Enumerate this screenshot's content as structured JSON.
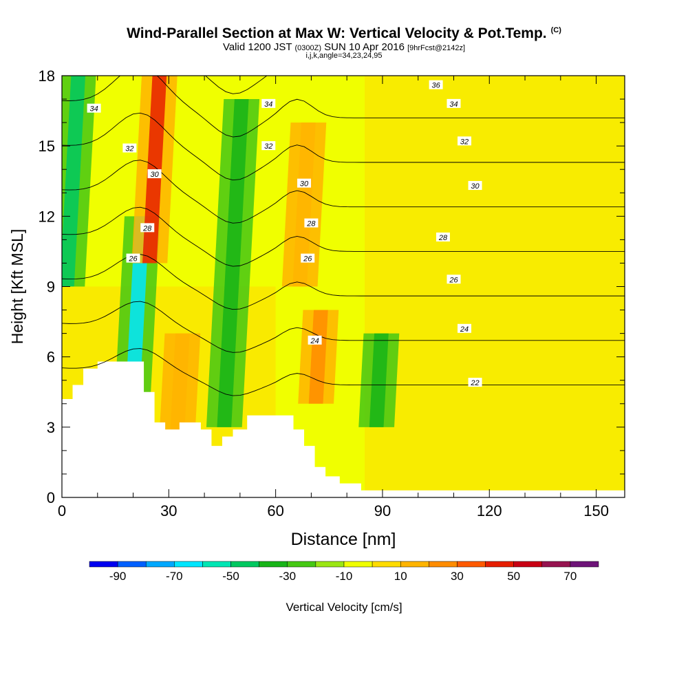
{
  "titles": {
    "main": "Wind-Parallel Section at Max W: Vertical Velocity & Pot.Temp.",
    "copyright": "(C)",
    "valid_prefix": "Valid 1200 JST",
    "valid_z": "(0300Z)",
    "valid_date": "SUN 10 Apr 2016",
    "forecast": "[9hrFcst@2142z]",
    "indices": "i,j,k,angle=34,23,24,95"
  },
  "chart_data": {
    "type": "heatmap",
    "title": "Wind-Parallel Section at Max W: Vertical Velocity & Pot.Temp.",
    "xlabel": "Distance [nm]",
    "ylabel": "Height [Kft MSL]",
    "xlim": [
      0,
      158
    ],
    "ylim": [
      0,
      18
    ],
    "x_ticks": [
      "0",
      "30",
      "60",
      "90",
      "120",
      "150"
    ],
    "y_ticks": [
      "0",
      "3",
      "6",
      "9",
      "12",
      "15",
      "18"
    ],
    "colorbar": {
      "label": "Vertical Velocity [cm/s]",
      "tick_labels": [
        "-90",
        "-70",
        "-50",
        "-30",
        "-10",
        "10",
        "30",
        "50",
        "70"
      ],
      "levels": [
        -90,
        -80,
        -70,
        -60,
        -50,
        -40,
        -30,
        -20,
        -10,
        0,
        10,
        20,
        30,
        40,
        50,
        60,
        70,
        80
      ],
      "colors": [
        "#0000f0",
        "#0060ff",
        "#00a8ff",
        "#00e6ff",
        "#00e6b4",
        "#00c860",
        "#18b418",
        "#46c814",
        "#9be614",
        "#f0ff00",
        "#ffdc00",
        "#ffb400",
        "#ff8c00",
        "#ff5a00",
        "#e61e00",
        "#c80014",
        "#961450",
        "#6e1478"
      ]
    },
    "vertical_velocity_features": [
      {
        "x": 3,
        "y_range": [
          9,
          18
        ],
        "value": -40,
        "label": "downdraft"
      },
      {
        "x": 21,
        "y_range": [
          3,
          12
        ],
        "value": -55,
        "label": "downdraft"
      },
      {
        "x": 26,
        "y_range": [
          10,
          18
        ],
        "value": 55,
        "label": "updraft"
      },
      {
        "x": 33,
        "y_range": [
          2,
          7
        ],
        "value": 25,
        "label": "updraft"
      },
      {
        "x": 48,
        "y_range": [
          3,
          17
        ],
        "value": -30,
        "label": "downdraft"
      },
      {
        "x": 68,
        "y_range": [
          9,
          16
        ],
        "value": 28,
        "label": "updraft"
      },
      {
        "x": 72,
        "y_range": [
          4,
          8
        ],
        "value": 35,
        "label": "updraft"
      },
      {
        "x": 89,
        "y_range": [
          3,
          7
        ],
        "value": -30,
        "label": "downdraft"
      }
    ],
    "theta_contour_labels": [
      {
        "value": "36",
        "x": 105,
        "y": 17.6
      },
      {
        "value": "34",
        "x": 9,
        "y": 16.6
      },
      {
        "value": "34",
        "x": 58,
        "y": 16.8
      },
      {
        "value": "34",
        "x": 110,
        "y": 16.8
      },
      {
        "value": "32",
        "x": 19,
        "y": 14.9
      },
      {
        "value": "32",
        "x": 58,
        "y": 15.0
      },
      {
        "value": "32",
        "x": 113,
        "y": 15.2
      },
      {
        "value": "30",
        "x": 26,
        "y": 13.8
      },
      {
        "value": "30",
        "x": 68,
        "y": 13.4
      },
      {
        "value": "30",
        "x": 116,
        "y": 13.3
      },
      {
        "value": "28",
        "x": 24,
        "y": 11.5
      },
      {
        "value": "28",
        "x": 70,
        "y": 11.7
      },
      {
        "value": "28",
        "x": 107,
        "y": 11.1
      },
      {
        "value": "26",
        "x": 20,
        "y": 10.2
      },
      {
        "value": "26",
        "x": 69,
        "y": 10.2
      },
      {
        "value": "26",
        "x": 110,
        "y": 9.3
      },
      {
        "value": "24",
        "x": 71,
        "y": 6.7
      },
      {
        "value": "24",
        "x": 113,
        "y": 7.2
      },
      {
        "value": "22",
        "x": 116,
        "y": 4.9
      }
    ],
    "terrain": [
      [
        0,
        4.2
      ],
      [
        3,
        4.2
      ],
      [
        3,
        4.8
      ],
      [
        6,
        4.8
      ],
      [
        6,
        5.5
      ],
      [
        10,
        5.5
      ],
      [
        10,
        5.8
      ],
      [
        23,
        5.8
      ],
      [
        23,
        4.5
      ],
      [
        26,
        4.5
      ],
      [
        26,
        3.2
      ],
      [
        29,
        3.2
      ],
      [
        29,
        2.9
      ],
      [
        33,
        2.9
      ],
      [
        33,
        3.2
      ],
      [
        39,
        3.2
      ],
      [
        39,
        2.9
      ],
      [
        42,
        2.9
      ],
      [
        42,
        2.2
      ],
      [
        45,
        2.2
      ],
      [
        45,
        2.6
      ],
      [
        48,
        2.6
      ],
      [
        48,
        2.9
      ],
      [
        52,
        2.9
      ],
      [
        52,
        3.5
      ],
      [
        65,
        3.5
      ],
      [
        65,
        2.9
      ],
      [
        68,
        2.9
      ],
      [
        68,
        2.2
      ],
      [
        71,
        2.2
      ],
      [
        71,
        1.3
      ],
      [
        74,
        1.3
      ],
      [
        74,
        0.9
      ],
      [
        78,
        0.9
      ],
      [
        78,
        0.6
      ],
      [
        84,
        0.6
      ],
      [
        84,
        0.3
      ],
      [
        158,
        0.3
      ]
    ]
  }
}
